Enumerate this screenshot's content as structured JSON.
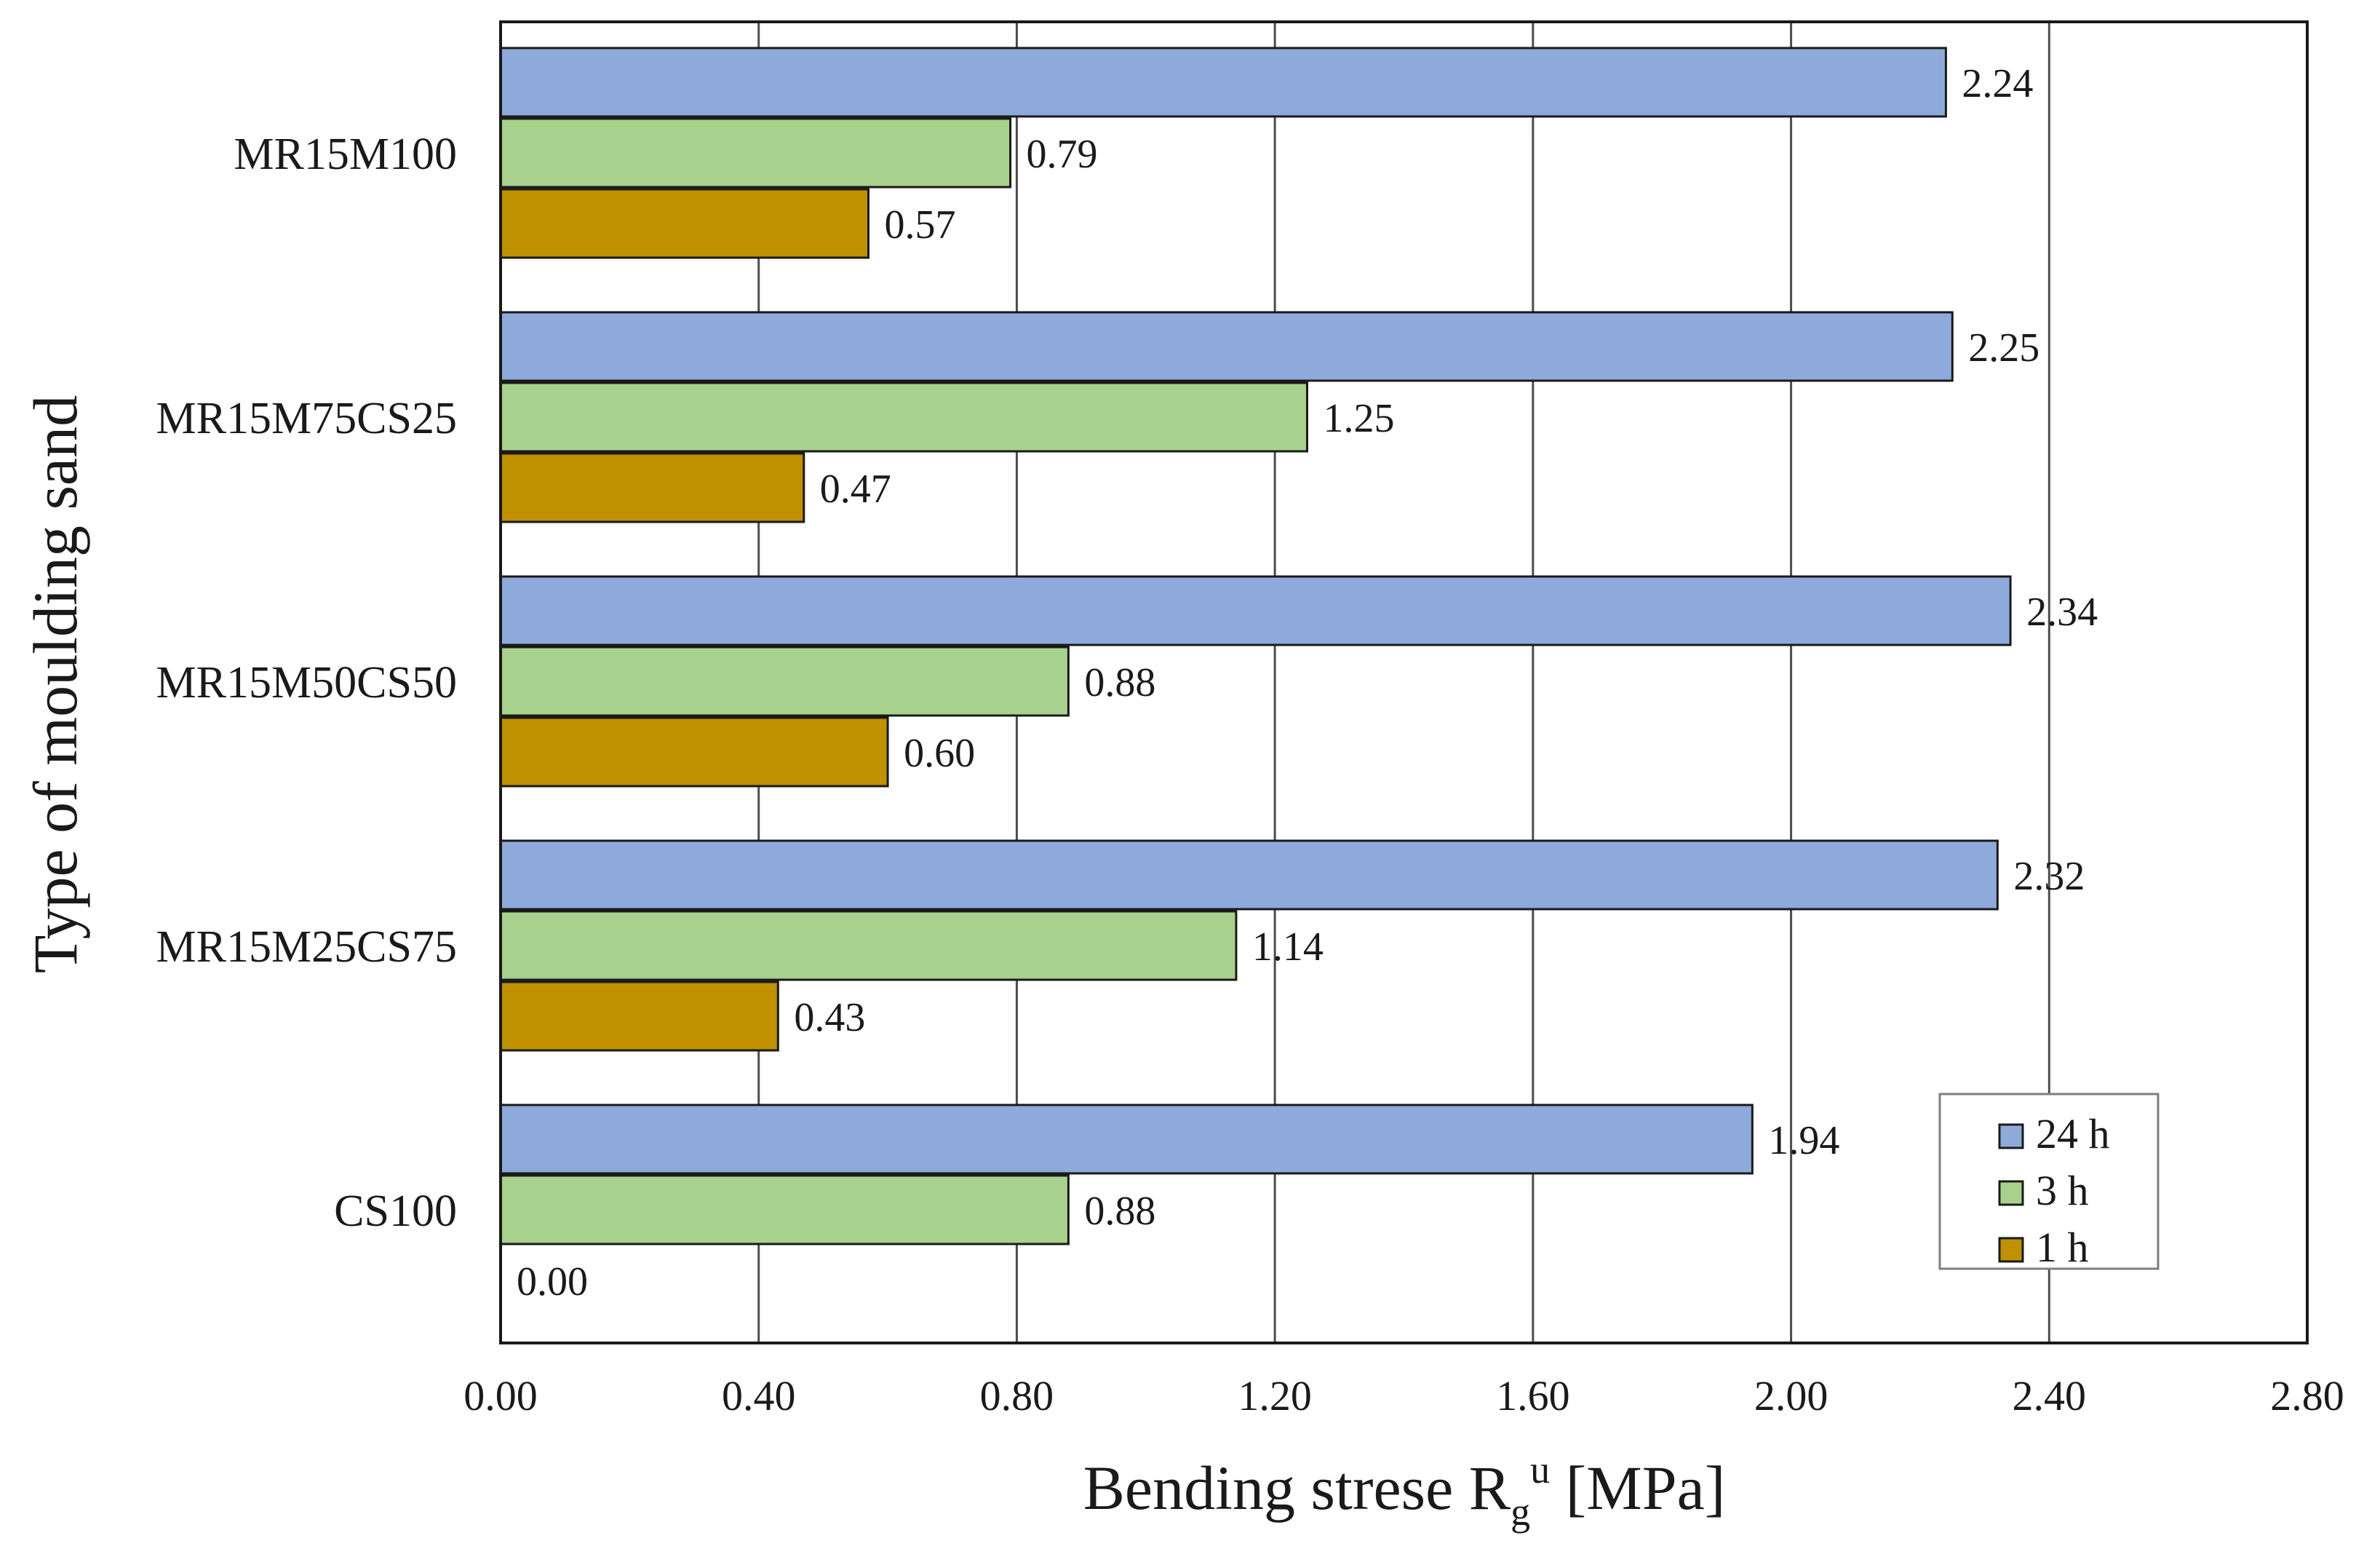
{
  "chart_data": {
    "type": "bar",
    "orientation": "horizontal",
    "categories": [
      "MR15M100",
      "MR15M75CS25",
      "MR15M50CS50",
      "MR15M25CS75",
      "CS100"
    ],
    "series": [
      {
        "name": "24 h",
        "color": "#8eaadb",
        "values": [
          2.24,
          2.25,
          2.34,
          2.32,
          1.94
        ]
      },
      {
        "name": "3 h",
        "color": "#a9d18e",
        "values": [
          0.79,
          1.25,
          0.88,
          1.14,
          0.88
        ]
      },
      {
        "name": "1 h",
        "color": "#bf9000",
        "values": [
          0.57,
          0.47,
          0.6,
          0.43,
          0.0
        ]
      }
    ],
    "data_labels": [
      [
        "2.24",
        "2.25",
        "2.34",
        "2.32",
        "1.94"
      ],
      [
        "0.79",
        "1.25",
        "0.88",
        "1.14",
        "0.88"
      ],
      [
        "0.57",
        "0.47",
        "0.60",
        "0.43",
        "0.00"
      ]
    ],
    "xlim": [
      0,
      2.8
    ],
    "xticks": [
      0,
      0.4,
      0.8,
      1.2,
      1.6,
      2.0,
      2.4,
      2.8
    ],
    "xtick_labels": [
      "0.00",
      "0.40",
      "0.80",
      "1.20",
      "1.60",
      "2.00",
      "2.40",
      "2.80"
    ],
    "xlabel": {
      "main": "Bending strese R",
      "subscript": "g",
      "superscript": "u",
      "unit": " [MPa]"
    },
    "ylabel": "Type of moulding sand",
    "grid": "vertical",
    "legend_position": "bottom-right"
  }
}
